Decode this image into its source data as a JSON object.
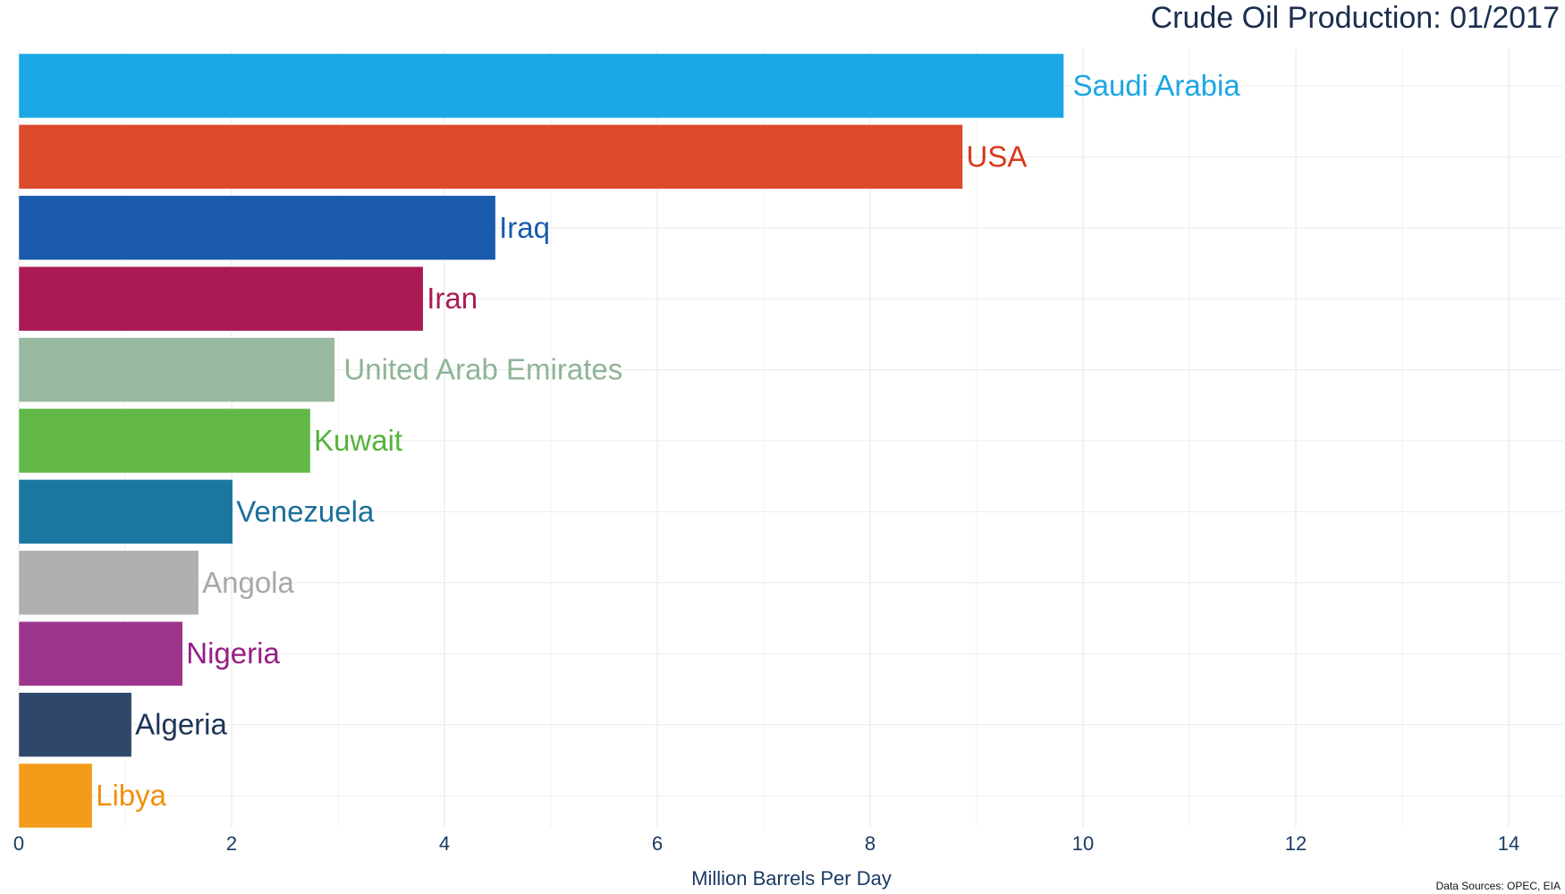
{
  "chart_data": {
    "type": "bar",
    "orientation": "horizontal",
    "title": "Crude Oil Production: 01/2017",
    "xlabel": "Million Barrels Per Day",
    "ylabel": "",
    "xlim": [
      0,
      14.6
    ],
    "xticks": [
      0,
      2,
      4,
      6,
      8,
      10,
      12,
      14
    ],
    "grid": true,
    "source": "Data Sources: OPEC, EIA",
    "categories": [
      "Saudi Arabia",
      "USA",
      "Iraq",
      "Iran",
      "United Arab Emirates",
      "Kuwait",
      "Venezuela",
      "Angola",
      "Nigeria",
      "Algeria",
      "Libya"
    ],
    "values": [
      9.82,
      8.87,
      4.48,
      3.8,
      2.97,
      2.74,
      2.01,
      1.69,
      1.54,
      1.06,
      0.69
    ],
    "colors": [
      "#1ba7e4",
      "#db4a2b",
      "#1a5aad",
      "#aa1a55",
      "#99b9a0",
      "#62b846",
      "#1b77a0",
      "#b0b0b0",
      "#9e358d",
      "#2f476a",
      "#f39c1a"
    ],
    "label_colors": [
      "#1ba7e4",
      "#d8391c",
      "#1a5aad",
      "#aa1a55",
      "#8fb496",
      "#55b23a",
      "#1b6f9a",
      "#a8a8a8",
      "#951f84",
      "#1d3557",
      "#f0900a"
    ]
  }
}
